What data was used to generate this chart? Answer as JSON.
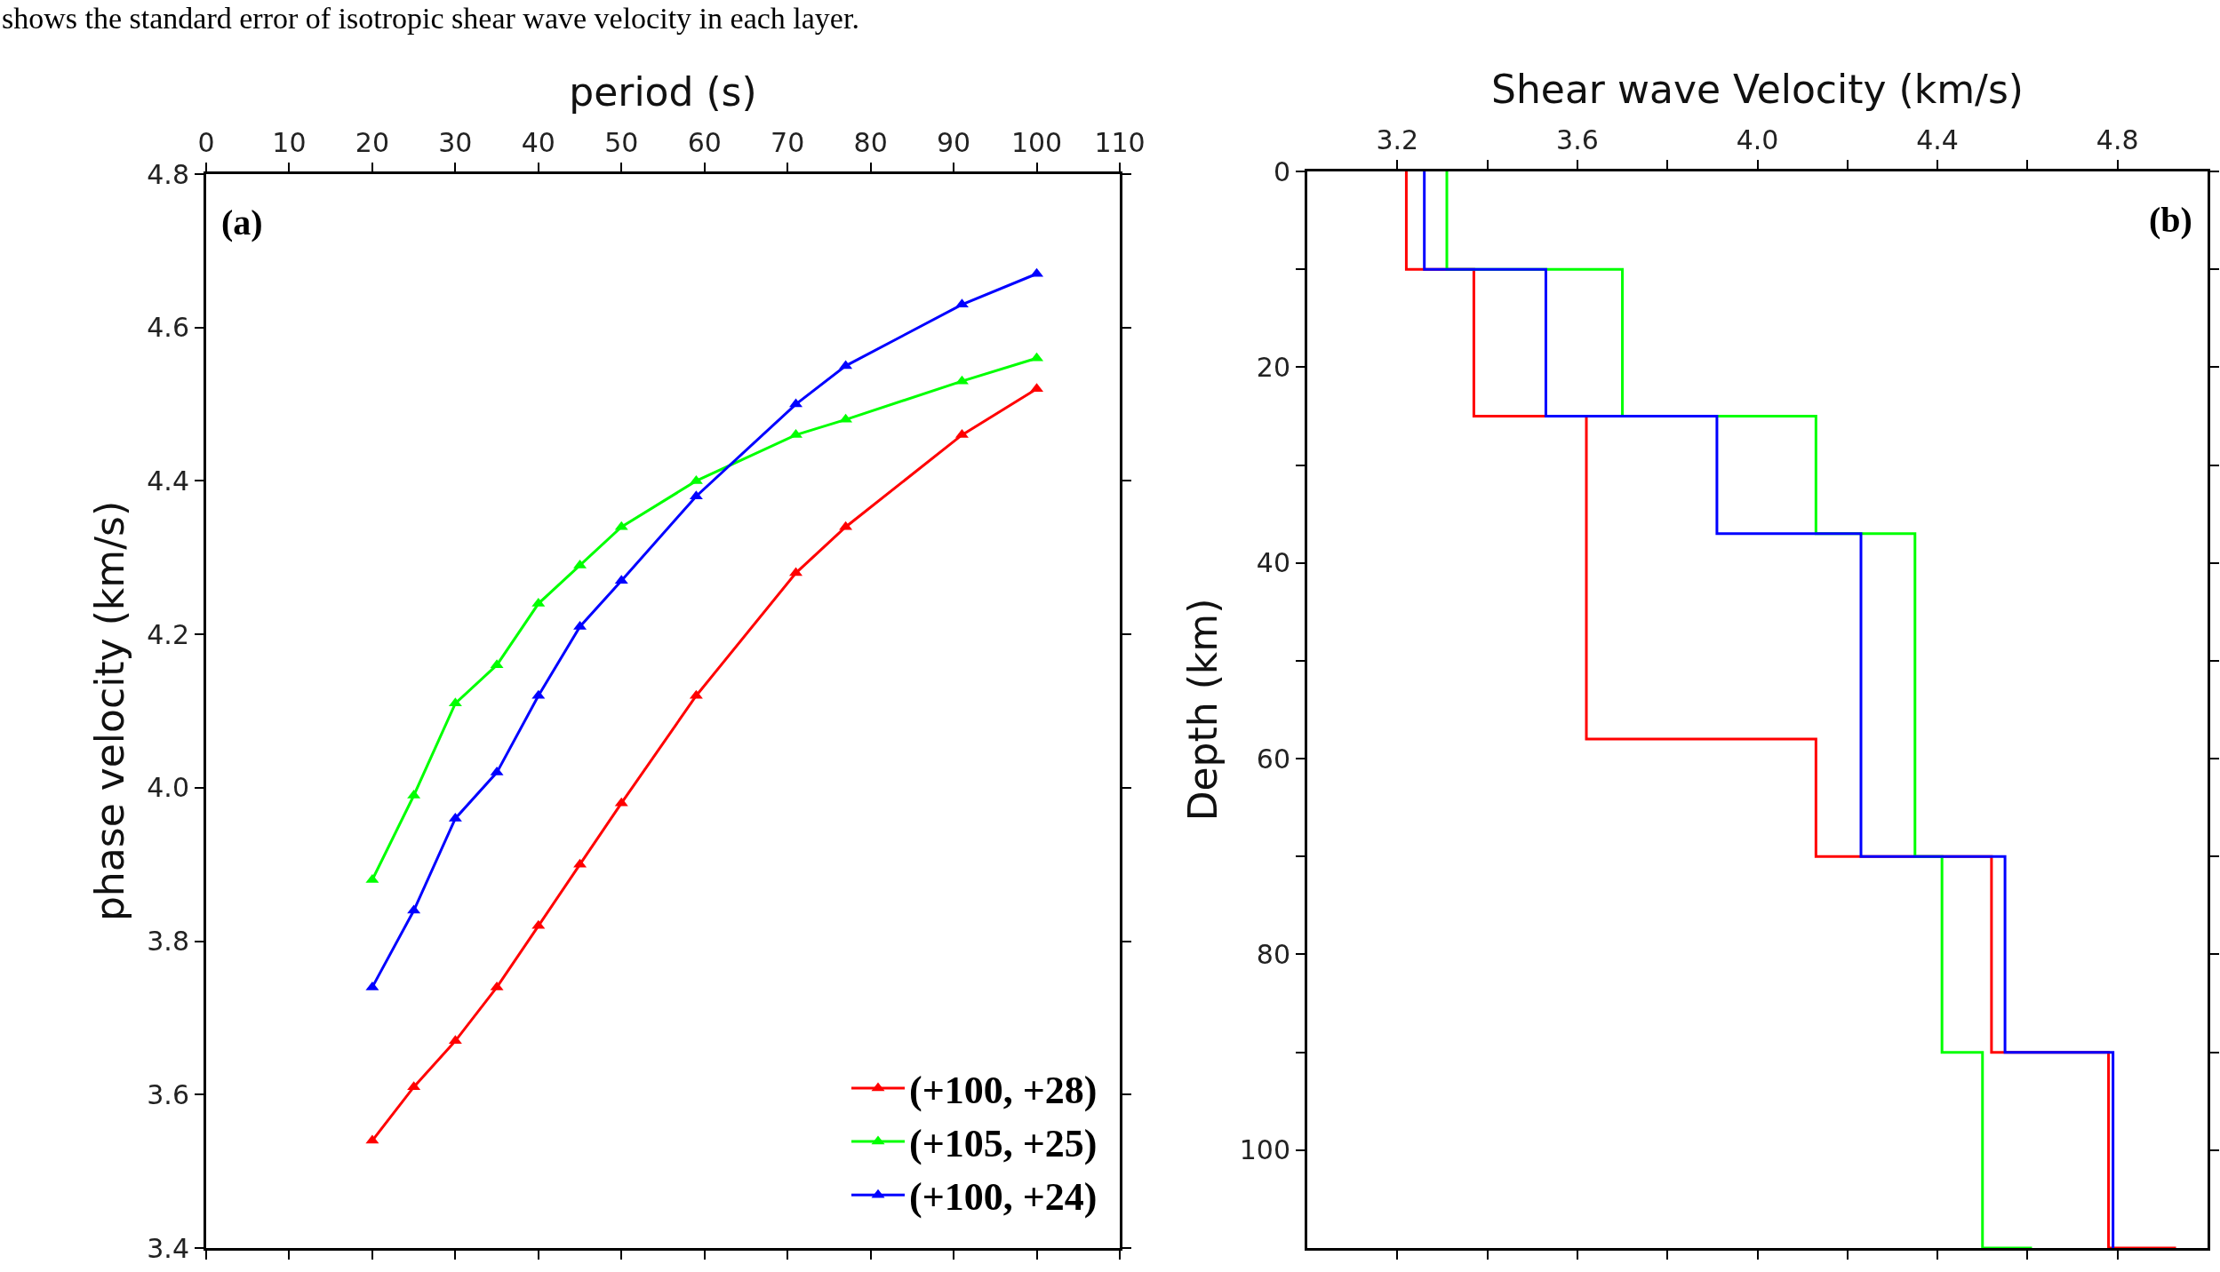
{
  "chart_data": [
    {
      "type": "line",
      "xlabel": "period (s)",
      "ylabel": "phase velocity (km/s)",
      "annotations": [
        "shows the standard error of isotropic shear wave velocity in each layer.",
        "(a)"
      ],
      "x": [
        20,
        25,
        30,
        35,
        40,
        45,
        50,
        59,
        71,
        77,
        91,
        100
      ],
      "series": [
        {
          "name": "(+100, +28)",
          "color": "#ff0000",
          "values": [
            3.54,
            3.61,
            3.67,
            3.74,
            3.82,
            3.9,
            3.98,
            4.12,
            4.28,
            4.34,
            4.46,
            4.52
          ]
        },
        {
          "name": "(+105, +25)",
          "color": "#00ff00",
          "values": [
            3.88,
            3.99,
            4.11,
            4.16,
            4.24,
            4.29,
            4.34,
            4.4,
            4.46,
            4.48,
            4.53,
            4.56
          ]
        },
        {
          "name": "(+100, +24)",
          "color": "#0000ff",
          "values": [
            3.74,
            3.84,
            3.96,
            4.02,
            4.12,
            4.21,
            4.27,
            4.38,
            4.5,
            4.55,
            4.63,
            4.67
          ]
        }
      ],
      "xlim": [
        0,
        110
      ],
      "xticks": [
        0,
        10,
        20,
        30,
        40,
        50,
        60,
        70,
        80,
        90,
        100,
        110
      ],
      "ylim": [
        3.4,
        4.8
      ],
      "yticks": [
        3.4,
        3.6,
        3.8,
        {
          "value": 4,
          "label": "4.0"
        },
        4.2,
        4.4,
        4.6,
        4.8
      ],
      "marker": "triangle",
      "line_style": "solid",
      "legend": "bottom right"
    },
    {
      "type": "step",
      "xlabel": "Shear wave Velocity (km/s)",
      "ylabel": "Depth (km)",
      "annotations": [
        "(b)"
      ],
      "series": [
        {
          "color": "#ff0000",
          "x": [
            3.22,
            3.37,
            3.62,
            4.13,
            4.52,
            4.78,
            4.93
          ],
          "values": [
            0,
            10,
            25,
            58,
            70,
            90,
            110
          ]
        },
        {
          "color": "#00ff00",
          "x": [
            3.31,
            3.7,
            4.13,
            4.35,
            4.41,
            4.5,
            4.61
          ],
          "values": [
            0,
            10,
            25,
            37,
            70,
            90,
            110
          ]
        },
        {
          "color": "#0000ff",
          "x": [
            3.26,
            3.53,
            3.91,
            4.23,
            4.55,
            4.79,
            4.79
          ],
          "values": [
            0,
            10,
            25,
            37,
            70,
            90,
            110
          ]
        }
      ],
      "xlim": [
        3.0,
        5.0
      ],
      "xticks": [
        3.2,
        {
          "value": 3.4,
          "label": null
        },
        3.6,
        {
          "value": 3.8,
          "label": null
        },
        {
          "value": 4,
          "label": "4.0"
        },
        {
          "value": 4.2,
          "label": null
        },
        4.4,
        {
          "value": 4.6,
          "label": null
        },
        4.8
      ],
      "ylim": [
        110,
        0
      ],
      "yticks": [
        0,
        {
          "value": 10,
          "label": null
        },
        20,
        {
          "value": 30,
          "label": null
        },
        40,
        {
          "value": 50,
          "label": null
        },
        60,
        {
          "value": 70,
          "label": null
        },
        80,
        {
          "value": 90,
          "label": null
        },
        100
      ],
      "line_style": "solid",
      "legend": false
    }
  ]
}
